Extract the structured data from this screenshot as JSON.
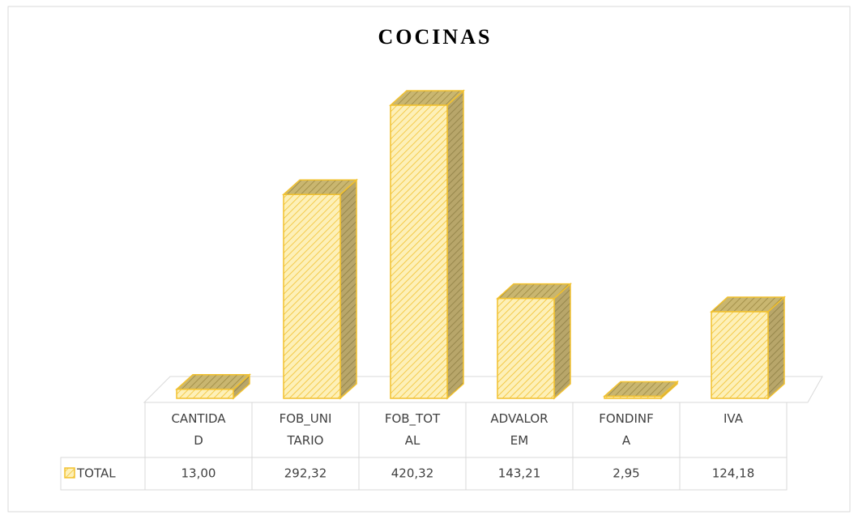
{
  "chart_data": {
    "type": "bar",
    "title": "COCINAS",
    "categories": [
      "CANTIDAD",
      "FOB_UNITARIO",
      "FOB_TOTAL",
      "ADVALOREM",
      "FONDINFA",
      "IVA"
    ],
    "series": [
      {
        "name": "TOTAL",
        "color": "#f2c12e",
        "values": [
          13.0,
          292.32,
          420.32,
          143.21,
          2.95,
          124.18
        ],
        "value_labels": [
          "13,00",
          "292,32",
          "420,32",
          "143,21",
          "2,95",
          "124,18"
        ]
      }
    ]
  }
}
